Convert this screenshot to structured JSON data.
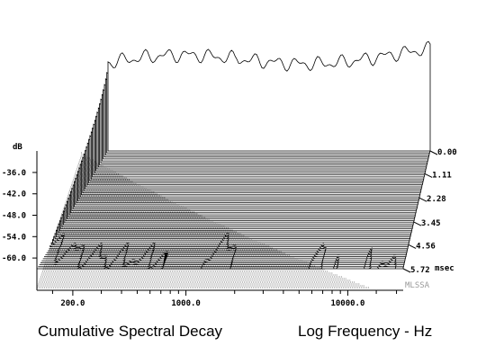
{
  "chart_data": {
    "type": "area",
    "title": "Cumulative Spectral Decay",
    "xlabel": "Log Frequency - Hz",
    "ylabel": "dB",
    "x_scale": "log",
    "x_ticks": [
      "200.0",
      "1000.0",
      "10000.0"
    ],
    "x_tick_values": [
      200,
      1000,
      10000
    ],
    "xlim": [
      120,
      22000
    ],
    "y_ticks": [
      "-36.0",
      "-42.0",
      "-48.0",
      "-54.0",
      "-60.0"
    ],
    "y_tick_values": [
      -36,
      -42,
      -48,
      -54,
      -60
    ],
    "ylim": [
      -63,
      -33
    ],
    "z_label": "msec",
    "z_ticks": [
      "0.00",
      "1.11",
      "2.28",
      "3.45",
      "4.56",
      "5.72"
    ],
    "z_tick_values": [
      0.0,
      1.11,
      2.28,
      3.45,
      4.56,
      5.72
    ],
    "slice_count": 60,
    "watermark": "MLSSA",
    "peaks_khz": [
      0.95,
      2.4,
      2.9,
      4.1,
      5.0,
      7.5,
      10.0,
      11.5
    ],
    "colors": {
      "ink": "#000000",
      "background": "#ffffff",
      "watermark": "#9a9a9a"
    }
  }
}
